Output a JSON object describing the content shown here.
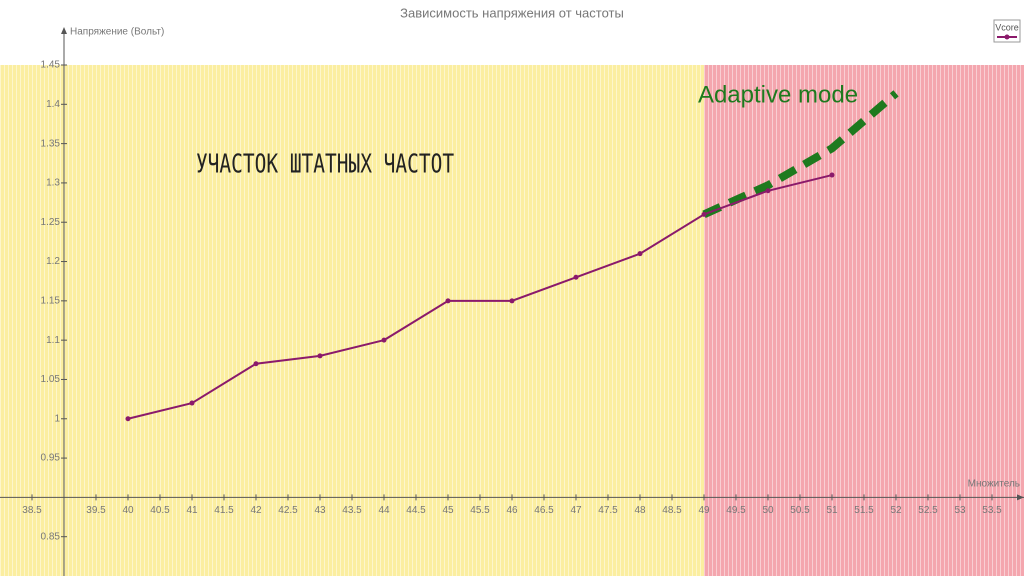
{
  "chart_data": {
    "type": "line",
    "title": "Зависимость напряжения от частоты",
    "x_label": "Множитель",
    "y_label": "Напряжение (Вольт)",
    "x": [
      40,
      41,
      42,
      43,
      44,
      45,
      46,
      47,
      48,
      49,
      50,
      51
    ],
    "series": [
      {
        "name": "Vcore",
        "color": "#8b1a6b",
        "values": [
          1.0,
          1.02,
          1.07,
          1.08,
          1.1,
          1.15,
          1.15,
          1.18,
          1.21,
          1.26,
          1.29,
          1.31
        ]
      }
    ],
    "xlim": [
      38,
      54
    ],
    "xticks": [
      38.5,
      39.5,
      40,
      40.5,
      41,
      41.5,
      42,
      42.5,
      43,
      43.5,
      44,
      44.5,
      45,
      45.5,
      46,
      46.5,
      47,
      47.5,
      48,
      48.5,
      49,
      49.5,
      50,
      50.5,
      51,
      51.5,
      52,
      52.5,
      53,
      53.5
    ],
    "ylim": [
      0.8,
      1.45
    ],
    "yticks": [
      0.85,
      0.95,
      1,
      1.05,
      1.1,
      1.15,
      1.2,
      1.25,
      1.3,
      1.35,
      1.4,
      1.45
    ],
    "x_axis_at": 0.9,
    "y_axis_at": 39,
    "legend": "top-right",
    "regions": [
      {
        "label": "УЧАСТОК ШТАТНЫХ ЧАСТОТ",
        "to": 49,
        "color": "#fbeea0",
        "label_color": "#222222"
      },
      {
        "label": "Adaptive mode",
        "from": 49,
        "color": "#f4a6ae",
        "label_color": "#1e7a1e"
      }
    ],
    "trend": {
      "color": "#1e7a1e",
      "x": [
        49,
        50,
        51,
        52
      ],
      "values": [
        1.26,
        1.297,
        1.344,
        1.414
      ]
    }
  }
}
